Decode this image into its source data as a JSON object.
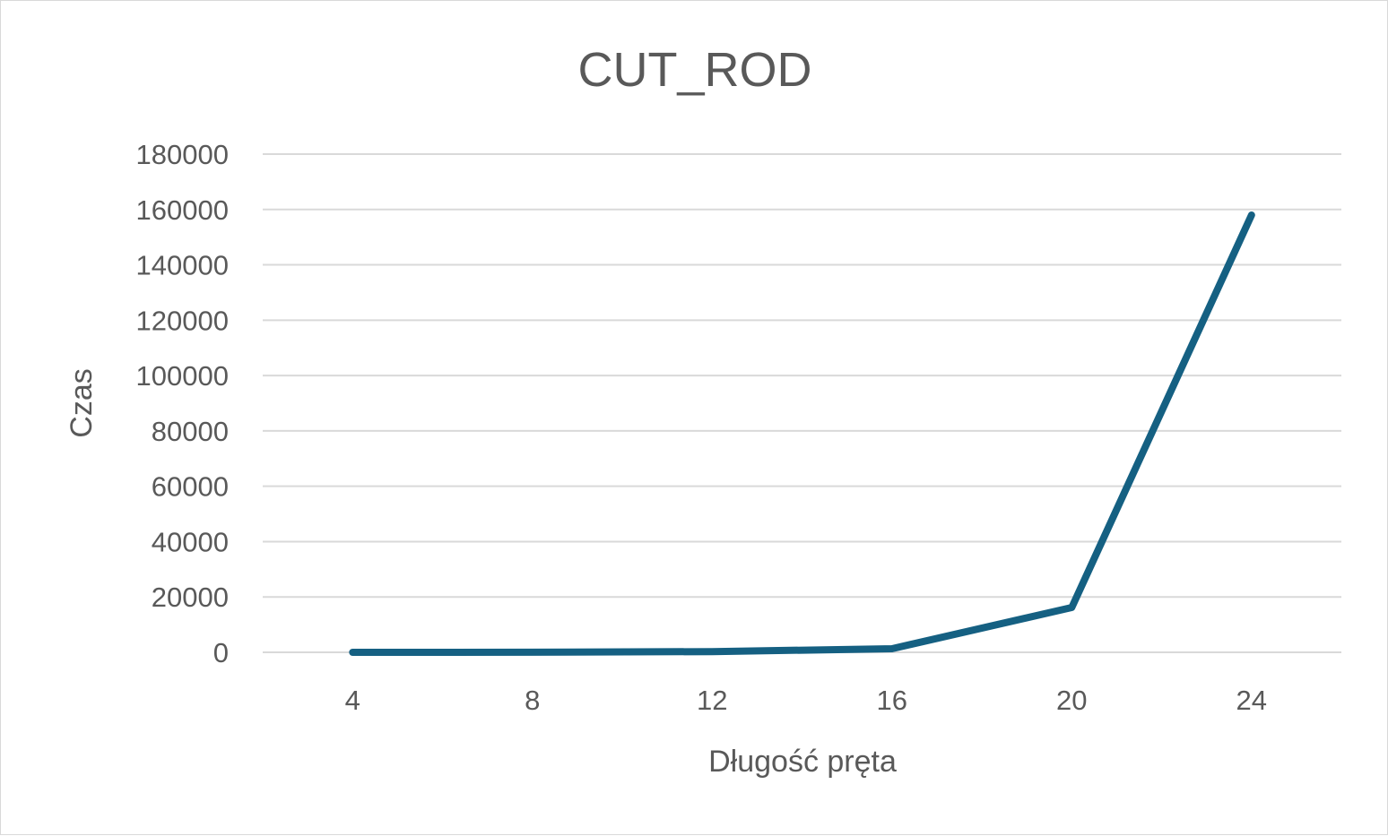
{
  "chart_data": {
    "type": "line",
    "title": "CUT_ROD",
    "xlabel": "Długość pręta",
    "ylabel": "Czas",
    "categories": [
      "4",
      "8",
      "12",
      "16",
      "20",
      "24"
    ],
    "series": [
      {
        "values": [
          2,
          30,
          250,
          1300,
          16200,
          158000
        ]
      }
    ],
    "ylim": [
      0,
      180000
    ],
    "yticks": [
      0,
      20000,
      40000,
      60000,
      80000,
      100000,
      120000,
      140000,
      160000,
      180000
    ],
    "grid": true,
    "legend": "none",
    "colors": {
      "series": "#156082",
      "grid": "#d9d9d9",
      "text": "#595959"
    }
  }
}
